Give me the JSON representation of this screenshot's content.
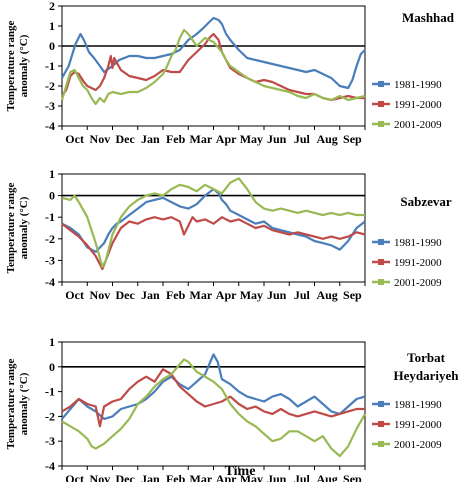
{
  "figure": {
    "xlabel": "Time"
  },
  "legend_labels": [
    "1981-1990",
    "1991-2000",
    "2001-2009"
  ],
  "colors": {
    "1981-1990": "#4a7ebb",
    "1991-2000": "#be4b48",
    "2001-2009": "#98b954"
  },
  "chart_data": [
    {
      "type": "line",
      "title": "Mashhad",
      "ylabel": "Temperature range anomaly (°C)",
      "ylim": [
        -4,
        2
      ],
      "yticks": [
        2,
        1,
        0,
        -1,
        -2,
        -3,
        -4
      ],
      "x_tick_labels": [
        "Oct",
        "Nov",
        "Dec",
        "Jan",
        "Feb",
        "Mar",
        "Apr",
        "May",
        "Jun",
        "Jul",
        "Aug",
        "Sep"
      ],
      "x_day_range": [
        0,
        360
      ],
      "zero_line": true,
      "legend_position": "right",
      "series": [
        {
          "name": "1981-1990",
          "x": [
            0,
            8,
            16,
            22,
            26,
            32,
            38,
            45,
            50,
            60,
            68,
            80,
            90,
            100,
            110,
            120,
            130,
            140,
            150,
            160,
            168,
            175,
            180,
            186,
            190,
            195,
            200,
            210,
            215,
            220,
            230,
            240,
            250,
            260,
            270,
            280,
            290,
            300,
            310,
            320,
            330,
            340,
            345,
            350,
            355,
            360
          ],
          "y": [
            -1.6,
            -1.0,
            0.1,
            0.6,
            0.3,
            -0.3,
            -0.6,
            -1.0,
            -1.3,
            -1.0,
            -0.7,
            -0.5,
            -0.5,
            -0.6,
            -0.6,
            -0.5,
            -0.4,
            -0.2,
            0.3,
            0.6,
            0.9,
            1.2,
            1.4,
            1.3,
            1.1,
            0.6,
            0.3,
            -0.2,
            -0.4,
            -0.6,
            -0.7,
            -0.8,
            -0.9,
            -1.0,
            -1.1,
            -1.2,
            -1.3,
            -1.2,
            -1.4,
            -1.6,
            -2.0,
            -2.1,
            -1.7,
            -1.0,
            -0.4,
            -0.2
          ]
        },
        {
          "name": "1991-2000",
          "x": [
            0,
            5,
            10,
            15,
            20,
            26,
            30,
            35,
            40,
            45,
            50,
            55,
            58,
            60,
            62,
            66,
            70,
            80,
            90,
            100,
            110,
            120,
            130,
            140,
            145,
            150,
            160,
            170,
            175,
            180,
            186,
            190,
            195,
            200,
            210,
            220,
            230,
            240,
            250,
            260,
            270,
            280,
            290,
            300,
            310,
            320,
            330,
            340,
            350,
            360
          ],
          "y": [
            -2.5,
            -2.2,
            -1.5,
            -1.3,
            -1.4,
            -1.8,
            -2.0,
            -2.1,
            -2.2,
            -2.0,
            -1.6,
            -1.0,
            -0.5,
            -1.1,
            -0.6,
            -0.9,
            -1.2,
            -1.5,
            -1.6,
            -1.7,
            -1.5,
            -1.2,
            -1.3,
            -1.3,
            -1.0,
            -0.7,
            -0.3,
            0.1,
            0.4,
            0.6,
            0.3,
            -0.3,
            -0.7,
            -1.1,
            -1.4,
            -1.6,
            -1.8,
            -1.7,
            -1.8,
            -2.0,
            -2.2,
            -2.3,
            -2.4,
            -2.4,
            -2.6,
            -2.7,
            -2.6,
            -2.5,
            -2.6,
            -2.6
          ]
        },
        {
          "name": "2001-2009",
          "x": [
            0,
            5,
            10,
            15,
            20,
            25,
            30,
            35,
            40,
            45,
            50,
            55,
            60,
            70,
            80,
            90,
            100,
            110,
            120,
            125,
            130,
            135,
            140,
            145,
            150,
            155,
            160,
            165,
            170,
            175,
            180,
            190,
            195,
            200,
            210,
            220,
            230,
            240,
            250,
            260,
            270,
            280,
            290,
            300,
            310,
            320,
            330,
            340,
            350,
            360
          ],
          "y": [
            -2.7,
            -2.0,
            -1.3,
            -1.2,
            -1.6,
            -2.0,
            -2.2,
            -2.6,
            -2.9,
            -2.6,
            -2.8,
            -2.4,
            -2.3,
            -2.4,
            -2.3,
            -2.3,
            -2.1,
            -1.8,
            -1.4,
            -1.0,
            -0.5,
            -0.2,
            0.4,
            0.8,
            0.6,
            0.3,
            0.0,
            0.2,
            0.4,
            0.3,
            0.2,
            -0.3,
            -0.7,
            -1.0,
            -1.3,
            -1.6,
            -1.8,
            -2.0,
            -2.1,
            -2.2,
            -2.3,
            -2.5,
            -2.6,
            -2.4,
            -2.6,
            -2.7,
            -2.5,
            -2.7,
            -2.6,
            -2.5
          ]
        }
      ]
    },
    {
      "type": "line",
      "title": "Sabzevar",
      "ylabel": "Temperature range anomaly (°C)",
      "ylim": [
        -4,
        1
      ],
      "yticks": [
        1,
        0,
        -1,
        -2,
        -3,
        -4
      ],
      "x_tick_labels": [
        "Oct",
        "Nov",
        "Dec",
        "Jan",
        "Feb",
        "Mar",
        "Apr",
        "May",
        "Jun",
        "Jul",
        "Aug",
        "Sep"
      ],
      "x_day_range": [
        0,
        360
      ],
      "zero_line": true,
      "legend_position": "right",
      "series": [
        {
          "name": "1981-1990",
          "x": [
            0,
            10,
            20,
            30,
            40,
            50,
            55,
            60,
            65,
            70,
            80,
            90,
            100,
            110,
            120,
            130,
            140,
            150,
            160,
            170,
            180,
            186,
            190,
            195,
            200,
            210,
            220,
            230,
            240,
            250,
            260,
            270,
            280,
            290,
            300,
            310,
            320,
            330,
            340,
            350,
            360
          ],
          "y": [
            -1.3,
            -1.5,
            -1.8,
            -2.4,
            -2.6,
            -2.2,
            -1.8,
            -1.5,
            -1.3,
            -1.2,
            -0.9,
            -0.6,
            -0.3,
            -0.2,
            -0.1,
            -0.3,
            -0.5,
            -0.6,
            -0.4,
            0.0,
            0.3,
            0.1,
            -0.2,
            -0.4,
            -0.7,
            -0.9,
            -1.1,
            -1.3,
            -1.2,
            -1.5,
            -1.6,
            -1.7,
            -1.8,
            -1.9,
            -2.1,
            -2.2,
            -2.3,
            -2.5,
            -2.1,
            -1.5,
            -1.2
          ]
        },
        {
          "name": "1991-2000",
          "x": [
            0,
            10,
            20,
            30,
            40,
            48,
            52,
            60,
            70,
            80,
            90,
            100,
            110,
            120,
            130,
            140,
            145,
            150,
            155,
            160,
            170,
            180,
            190,
            200,
            210,
            220,
            230,
            240,
            250,
            260,
            270,
            280,
            290,
            300,
            310,
            320,
            330,
            340,
            350,
            360
          ],
          "y": [
            -1.3,
            -1.6,
            -1.9,
            -2.3,
            -2.8,
            -3.4,
            -3.0,
            -2.2,
            -1.5,
            -1.2,
            -1.3,
            -1.1,
            -1.0,
            -1.1,
            -1.0,
            -1.2,
            -1.8,
            -1.4,
            -1.0,
            -1.2,
            -1.1,
            -1.3,
            -1.0,
            -1.2,
            -1.1,
            -1.3,
            -1.5,
            -1.4,
            -1.6,
            -1.7,
            -1.8,
            -1.7,
            -1.8,
            -1.9,
            -2.0,
            -1.9,
            -2.0,
            -1.9,
            -1.7,
            -1.8
          ]
        },
        {
          "name": "2001-2009",
          "x": [
            0,
            10,
            15,
            20,
            30,
            40,
            48,
            52,
            60,
            70,
            80,
            90,
            100,
            110,
            120,
            130,
            140,
            150,
            160,
            170,
            180,
            190,
            200,
            210,
            220,
            230,
            240,
            250,
            260,
            270,
            280,
            290,
            300,
            310,
            320,
            330,
            340,
            350,
            360
          ],
          "y": [
            -0.1,
            -0.2,
            0.0,
            -0.3,
            -1.0,
            -2.2,
            -3.3,
            -3.0,
            -1.8,
            -1.0,
            -0.5,
            -0.2,
            0.0,
            0.1,
            0.0,
            0.3,
            0.5,
            0.4,
            0.2,
            0.5,
            0.3,
            0.1,
            0.6,
            0.8,
            0.3,
            -0.3,
            -0.6,
            -0.7,
            -0.6,
            -0.7,
            -0.8,
            -0.7,
            -0.8,
            -0.9,
            -0.8,
            -0.9,
            -0.8,
            -0.9,
            -0.9
          ]
        }
      ]
    },
    {
      "type": "line",
      "title": "Torbat Heydariyeh",
      "ylabel": "Temperature range anomaly (°C)",
      "ylim": [
        -4,
        1
      ],
      "yticks": [
        1,
        0,
        -1,
        -2,
        -3,
        -4
      ],
      "x_tick_labels": [
        "Oct",
        "Nov",
        "Dec",
        "Jan",
        "Feb",
        "Mar",
        "Apr",
        "May",
        "Jun",
        "Jul",
        "Aug",
        "Sep"
      ],
      "x_day_range": [
        0,
        360
      ],
      "zero_line": true,
      "legend_position": "right",
      "series": [
        {
          "name": "1981-1990",
          "x": [
            0,
            10,
            20,
            30,
            40,
            50,
            60,
            70,
            80,
            90,
            100,
            110,
            120,
            130,
            140,
            150,
            160,
            170,
            175,
            180,
            185,
            190,
            200,
            210,
            220,
            230,
            240,
            250,
            260,
            270,
            280,
            290,
            300,
            310,
            320,
            330,
            340,
            350,
            360
          ],
          "y": [
            -2.1,
            -1.7,
            -1.3,
            -1.6,
            -1.8,
            -2.1,
            -2.0,
            -1.7,
            -1.6,
            -1.5,
            -1.3,
            -1.0,
            -0.6,
            -0.4,
            -0.7,
            -0.9,
            -0.6,
            -0.3,
            0.1,
            0.5,
            0.2,
            -0.5,
            -0.7,
            -1.0,
            -1.2,
            -1.3,
            -1.4,
            -1.2,
            -1.1,
            -1.3,
            -1.6,
            -1.4,
            -1.2,
            -1.5,
            -1.8,
            -1.9,
            -1.6,
            -1.3,
            -1.2
          ]
        },
        {
          "name": "1991-2000",
          "x": [
            0,
            10,
            20,
            30,
            40,
            45,
            50,
            60,
            70,
            80,
            90,
            100,
            110,
            120,
            130,
            140,
            150,
            160,
            170,
            180,
            190,
            200,
            210,
            220,
            230,
            240,
            250,
            260,
            270,
            280,
            290,
            300,
            310,
            320,
            330,
            340,
            350,
            360
          ],
          "y": [
            -1.8,
            -1.6,
            -1.3,
            -1.5,
            -1.6,
            -2.4,
            -1.6,
            -1.4,
            -1.3,
            -0.9,
            -0.6,
            -0.4,
            -0.6,
            -0.1,
            -0.3,
            -0.8,
            -1.1,
            -1.4,
            -1.6,
            -1.5,
            -1.4,
            -1.2,
            -1.5,
            -1.7,
            -1.6,
            -1.8,
            -1.9,
            -1.7,
            -1.9,
            -2.0,
            -1.9,
            -1.8,
            -1.9,
            -2.0,
            -1.9,
            -1.8,
            -1.7,
            -1.7
          ]
        },
        {
          "name": "2001-2009",
          "x": [
            0,
            10,
            20,
            30,
            35,
            40,
            50,
            60,
            70,
            80,
            90,
            100,
            110,
            120,
            130,
            140,
            145,
            150,
            155,
            160,
            170,
            180,
            190,
            200,
            210,
            220,
            230,
            240,
            250,
            260,
            270,
            280,
            290,
            300,
            310,
            320,
            330,
            340,
            350,
            360
          ],
          "y": [
            -2.2,
            -2.4,
            -2.6,
            -2.9,
            -3.2,
            -3.3,
            -3.1,
            -2.8,
            -2.5,
            -2.1,
            -1.5,
            -1.2,
            -0.8,
            -0.5,
            -0.3,
            0.1,
            0.3,
            0.2,
            0.0,
            -0.2,
            -0.4,
            -0.6,
            -0.9,
            -1.5,
            -1.9,
            -2.2,
            -2.4,
            -2.7,
            -3.0,
            -2.9,
            -2.6,
            -2.6,
            -2.8,
            -3.0,
            -2.8,
            -3.3,
            -3.6,
            -3.2,
            -2.5,
            -1.9
          ]
        }
      ]
    }
  ]
}
